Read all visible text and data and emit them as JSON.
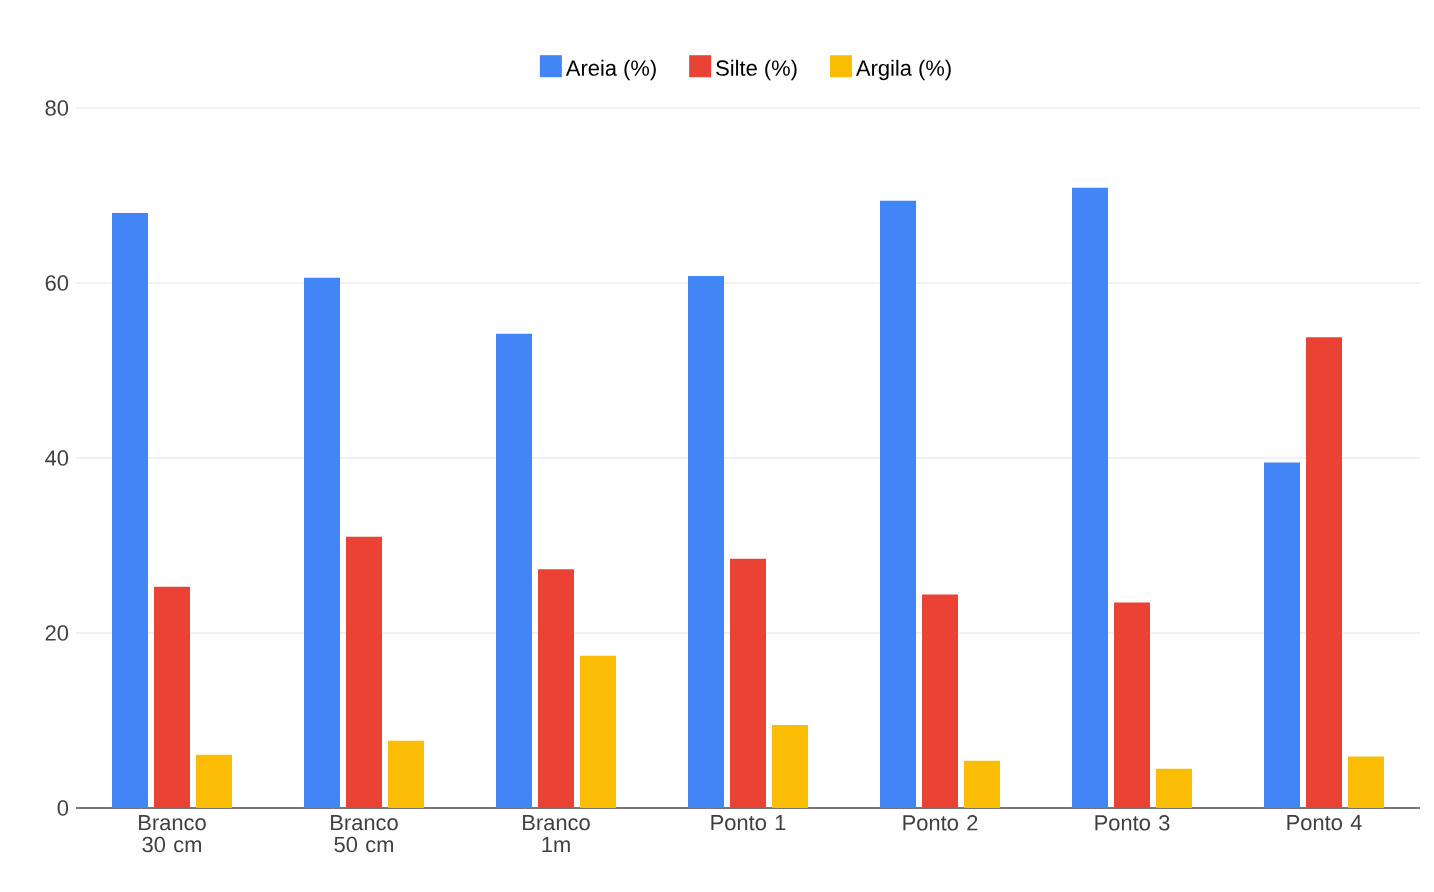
{
  "chart_data": {
    "type": "bar",
    "categories": [
      "Branco 30 cm",
      "Branco 50 cm",
      "Branco 1m",
      "Ponto 1",
      "Ponto 2",
      "Ponto 3",
      "Ponto 4"
    ],
    "series": [
      {
        "name": "Areia (%)",
        "color": "#4285f4",
        "values": [
          68.0,
          60.6,
          54.2,
          60.8,
          69.4,
          70.9,
          39.5
        ]
      },
      {
        "name": "Silte (%)",
        "color": "#ea4335",
        "values": [
          25.3,
          31.0,
          27.3,
          28.5,
          24.4,
          23.5,
          53.8
        ]
      },
      {
        "name": "Argila (%)",
        "color": "#fbbc04",
        "values": [
          6.1,
          7.7,
          17.4,
          9.5,
          5.4,
          4.5,
          5.9
        ]
      }
    ],
    "ylim": [
      0,
      80
    ],
    "yticks": [
      0,
      20,
      40,
      60,
      80
    ],
    "grid": "y",
    "legend": "top"
  }
}
